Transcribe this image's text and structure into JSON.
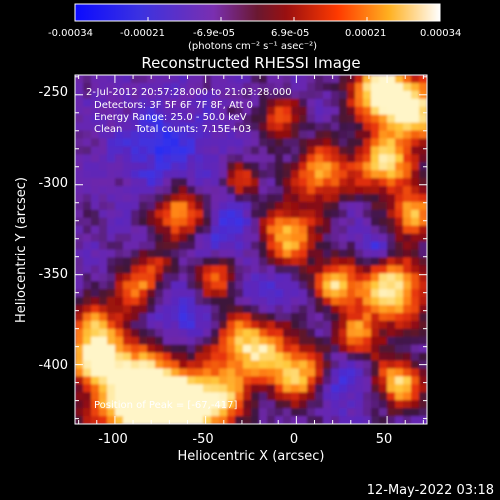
{
  "colorbar": {
    "tick_labels": [
      "-0.00034",
      "-0.00021",
      "-6.9e-05",
      "6.9e-05",
      "0.00021",
      "0.00034"
    ],
    "unit_label": "(photons cm⁻² s⁻¹ asec⁻²)",
    "range": [
      -0.00034,
      0.00034
    ]
  },
  "plot": {
    "title": "Reconstructed RHESSI Image",
    "xlabel": "Heliocentric X (arcsec)",
    "ylabel": "Heliocentric Y (arcsec)",
    "x_tick_labels": [
      "-100",
      "-50",
      "0",
      "50"
    ],
    "y_tick_labels": [
      "-250",
      "-300",
      "-350",
      "-400"
    ],
    "xlim": [
      -122,
      72
    ],
    "ylim": [
      -433,
      -239
    ]
  },
  "annotations": {
    "time_range": "2-Jul-2012 20:57:28.000 to 21:03:28.000",
    "detectors": "Detectors: 3F 5F 6F 7F 8F, Att 0",
    "energy": "Energy Range: 25.0 - 50.0 keV",
    "clean": "Clean    Total counts: 7.15E+03",
    "peak": "Position of Peak = [-67,-417]"
  },
  "footer": {
    "timestamp": "12-May-2022 03:18"
  },
  "colors": {
    "background": "#000000",
    "foreground": "#ffffff",
    "colormap": [
      "#1a1aff",
      "#5a2fd0",
      "#7a2bb8",
      "#b02020",
      "#ff5a10",
      "#ffd34a",
      "#ffffff"
    ]
  }
}
